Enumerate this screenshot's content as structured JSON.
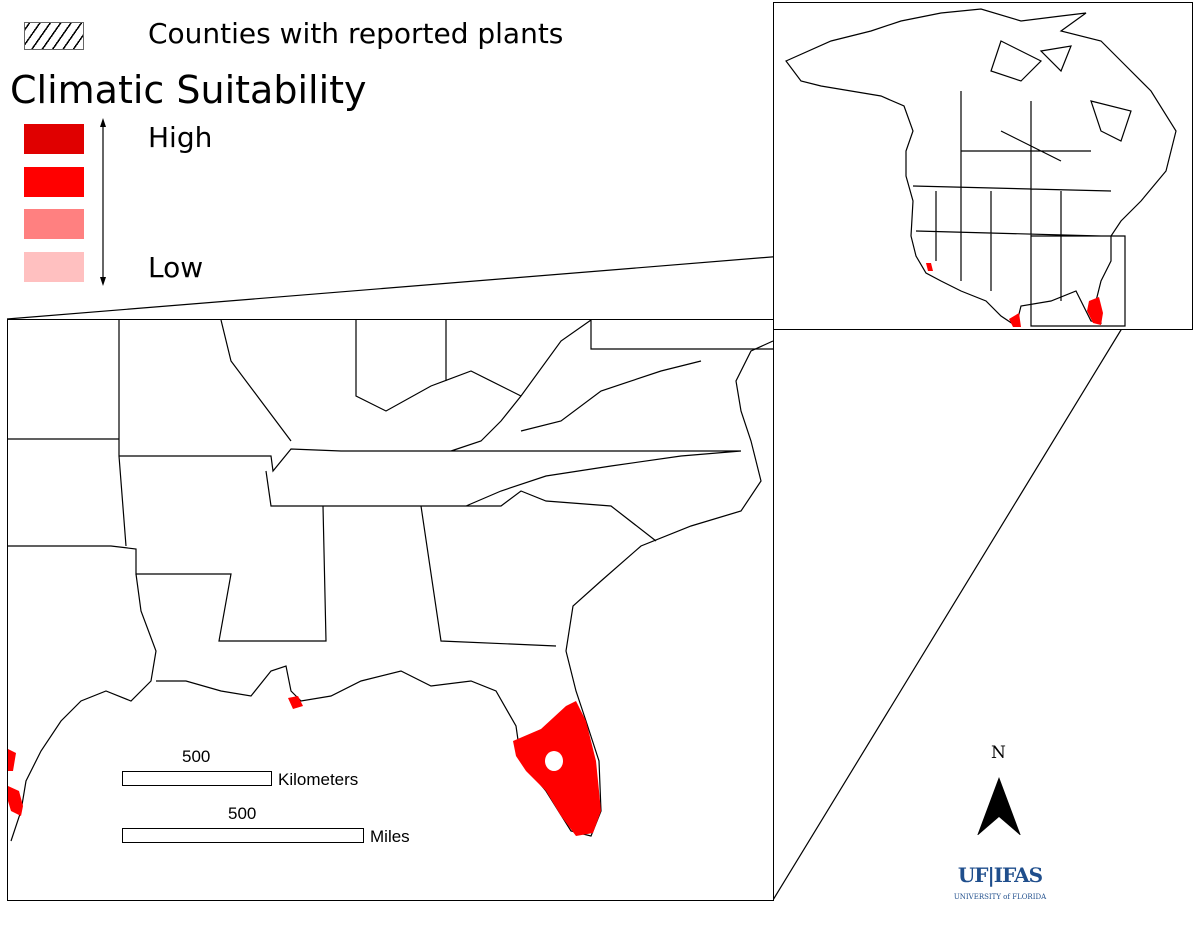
{
  "legend": {
    "counties_label": "Counties with reported plants",
    "title": "Climatic Suitability",
    "high_label": "High",
    "low_label": "Low",
    "classes": [
      {
        "level": "highest",
        "color": "#e00000"
      },
      {
        "level": "high",
        "color": "#ff0000"
      },
      {
        "level": "low",
        "color": "#ff8080"
      },
      {
        "level": "lowest",
        "color": "#ffc0c0"
      }
    ]
  },
  "scale_bar": {
    "km_value": "500",
    "km_unit": "Kilometers",
    "mi_value": "500",
    "mi_unit": "Miles"
  },
  "north_arrow": {
    "label": "N"
  },
  "logo": {
    "main": "UF|IFAS",
    "sub": "UNIVERSITY of FLORIDA",
    "color": "#1f4e8c",
    "accent": "#e87722"
  },
  "suitability_color": "#ff0000"
}
